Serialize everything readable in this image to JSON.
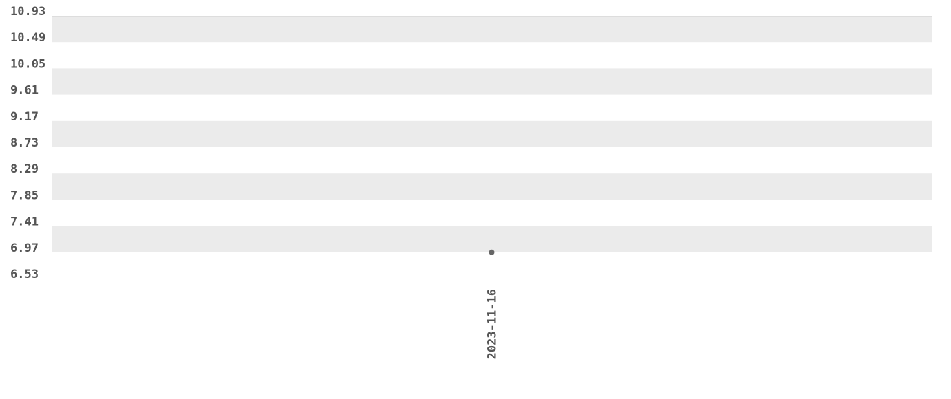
{
  "chart_data": {
    "type": "scatter",
    "categories": [
      "2023-11-16"
    ],
    "values": [
      6.97
    ],
    "ylim": [
      6.53,
      10.93
    ],
    "yticks": [
      "10.93",
      "10.49",
      "10.05",
      "9.61",
      "9.17",
      "8.73",
      "8.29",
      "7.85",
      "7.41",
      "6.97",
      "6.53"
    ],
    "grid": "alternating horizontal bands",
    "colors": {
      "band": "#ebebeb",
      "point": "#666666",
      "text": "#555555",
      "border": "#dddddd"
    }
  }
}
